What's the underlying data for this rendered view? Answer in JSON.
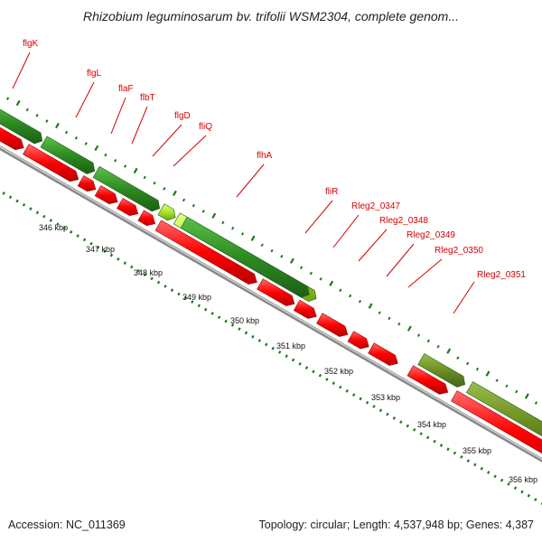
{
  "title": "Rhizobium leguminosarum bv. trifolii WSM2304, complete genom...",
  "footer": {
    "accession_label": "Accession:",
    "accession": "NC_011369",
    "topology_label": "Topology:",
    "topology": "circular",
    "length_label": "Length:",
    "length": "4,537,948 bp",
    "genes_label": "Genes:",
    "genes": "4,387"
  },
  "colors": {
    "gene_label": "#d40000",
    "reverse_strand": "#ff0000",
    "forward_dark": "#2e8b22",
    "forward_light": "#a8e62a",
    "forward_olive": "#6b8e23",
    "backbone": "#999999",
    "tick": "#1a7a1a"
  },
  "genes": [
    {
      "name": "flgK"
    },
    {
      "name": "flgL"
    },
    {
      "name": "flaF"
    },
    {
      "name": "flbT"
    },
    {
      "name": "flgD"
    },
    {
      "name": "fliQ"
    },
    {
      "name": "flhA"
    },
    {
      "name": "fliR"
    },
    {
      "name": "Rleg2_0347"
    },
    {
      "name": "Rleg2_0348"
    },
    {
      "name": "Rleg2_0349"
    },
    {
      "name": "Rleg2_0350"
    },
    {
      "name": "Rleg2_0351"
    }
  ],
  "scale": [
    {
      "label": "346 kbp"
    },
    {
      "label": "347 kbp"
    },
    {
      "label": "348 kbp"
    },
    {
      "label": "349 kbp"
    },
    {
      "label": "350 kbp"
    },
    {
      "label": "351 kbp"
    },
    {
      "label": "352 kbp"
    },
    {
      "label": "353 kbp"
    },
    {
      "label": "354 kbp"
    },
    {
      "label": "355 kbp"
    },
    {
      "label": "356 kbp"
    }
  ]
}
